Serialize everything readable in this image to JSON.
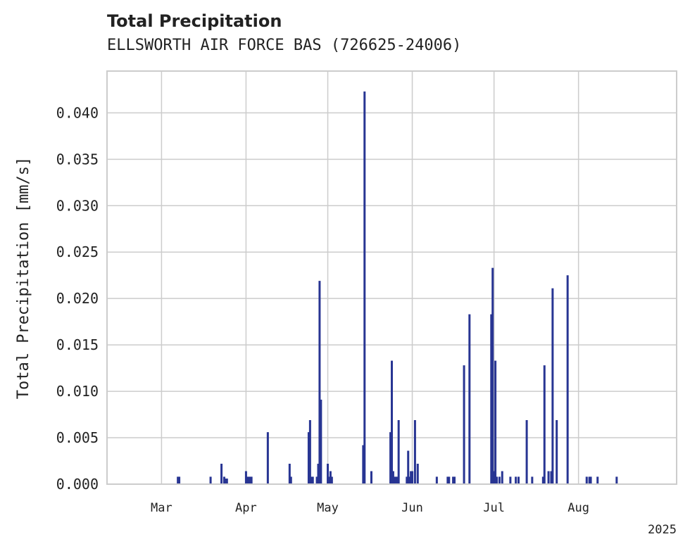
{
  "chart_data": {
    "type": "bar",
    "title": "Total Precipitation",
    "subtitle": "ELLSWORTH AIR FORCE BAS (726625-24006)",
    "xlabel": "",
    "ylabel": "Total Precipitation [mm/s]",
    "ylim": [
      0,
      0.0445
    ],
    "yticks": [
      "0.000",
      "0.005",
      "0.010",
      "0.015",
      "0.020",
      "0.025",
      "0.030",
      "0.035",
      "0.040"
    ],
    "ytick_values": [
      0,
      0.005,
      0.01,
      0.015,
      0.02,
      0.025,
      0.03,
      0.035,
      0.04
    ],
    "xlim_day": [
      -20,
      189
    ],
    "xticks": [
      {
        "label": "Mar",
        "day": 0
      },
      {
        "label": "Apr",
        "day": 31
      },
      {
        "label": "May",
        "day": 61
      },
      {
        "label": "Jun",
        "day": 92
      },
      {
        "label": "Jul",
        "day": 122
      },
      {
        "label": "Aug",
        "day": 153
      }
    ],
    "x_offset_label": "2025",
    "grid": true,
    "color": "#283593",
    "series": [
      {
        "name": "Total Precipitation",
        "x_day": [
          6,
          6.5,
          18,
          22,
          23,
          23.5,
          24,
          31,
          31.5,
          32,
          32.5,
          33,
          39,
          47,
          47.5,
          54,
          54.5,
          55,
          55.5,
          57,
          57.5,
          58,
          58.5,
          61,
          61.5,
          62,
          62.5,
          74,
          74.5,
          77,
          84,
          84.5,
          85,
          85.5,
          86,
          86.5,
          87,
          90,
          90.5,
          91,
          91.5,
          92,
          93,
          94,
          101,
          105,
          105.5,
          107,
          107.5,
          111,
          113,
          121,
          121.5,
          122,
          122.5,
          123,
          124,
          125,
          128,
          130,
          131,
          134,
          136,
          140,
          140.5,
          142,
          143,
          143.5,
          145,
          149,
          156,
          157,
          157.5,
          160,
          167
        ],
        "values": [
          0.0008,
          0.0008,
          0.0008,
          0.0022,
          0.0008,
          0.0006,
          0.0006,
          0.0014,
          0.0008,
          0.0008,
          0.0008,
          0.0008,
          0.0056,
          0.0022,
          0.0008,
          0.0056,
          0.0069,
          0.0008,
          0.0008,
          0.0008,
          0.0022,
          0.0219,
          0.0091,
          0.0022,
          0.0008,
          0.0014,
          0.0008,
          0.0042,
          0.0423,
          0.0014,
          0.0056,
          0.0133,
          0.0014,
          0.0008,
          0.0008,
          0.0008,
          0.0069,
          0.0008,
          0.0036,
          0.0008,
          0.0014,
          0.0014,
          0.0069,
          0.0022,
          0.0008,
          0.0008,
          0.0008,
          0.0008,
          0.0008,
          0.0128,
          0.0183,
          0.0183,
          0.0233,
          0.0014,
          0.0133,
          0.0008,
          0.0008,
          0.0014,
          0.0008,
          0.0008,
          0.0008,
          0.0069,
          0.0008,
          0.0008,
          0.0128,
          0.0014,
          0.0014,
          0.0211,
          0.0069,
          0.0225,
          0.0008,
          0.0008,
          0.0008,
          0.0008,
          0.0008
        ]
      }
    ]
  }
}
